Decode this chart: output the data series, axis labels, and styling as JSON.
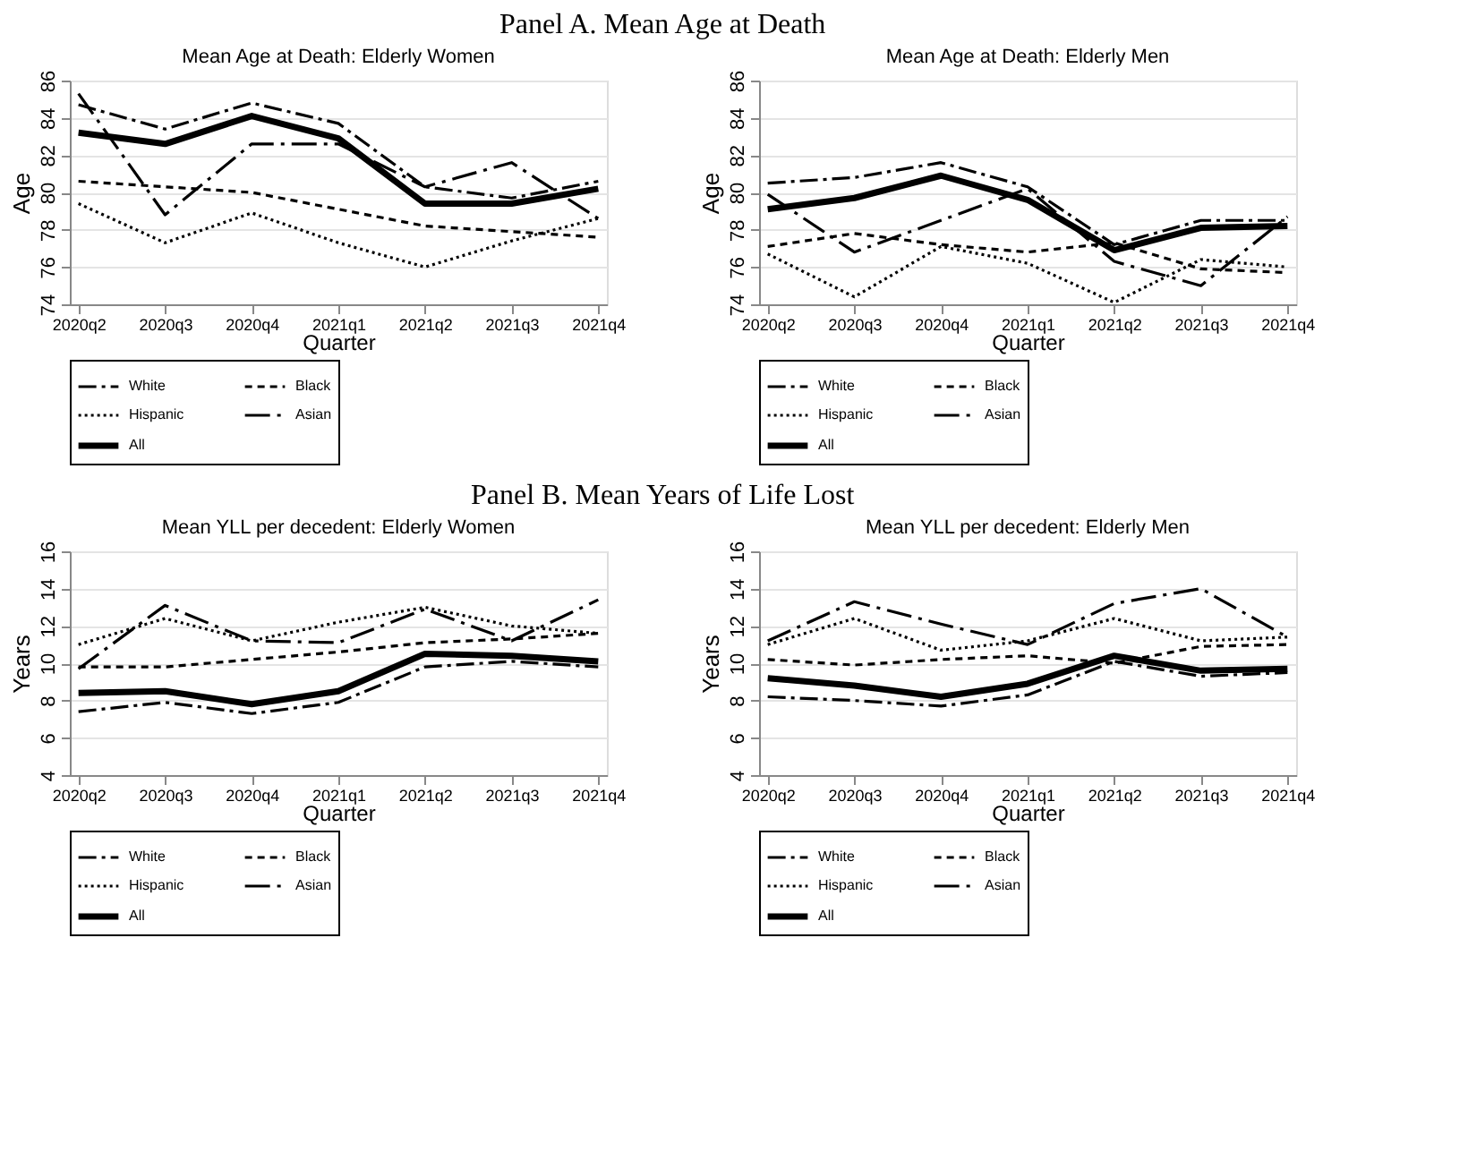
{
  "chart_data": [
    {
      "type": "line",
      "title": "Mean Age at Death: Elderly Women",
      "annotations": [
        "Panel A. Mean Age at Death"
      ],
      "xlabel": "Quarter",
      "ylabel": "Age",
      "categories": [
        "2020q2",
        "2020q3",
        "2020q4",
        "2021q1",
        "2021q2",
        "2021q3",
        "2021q4"
      ],
      "ylim": [
        74,
        86
      ],
      "yticks": [
        74,
        76,
        78,
        80,
        82,
        84,
        86
      ],
      "grid": "y",
      "legend": "bottom",
      "marker": "none",
      "series": [
        {
          "name": "White",
          "color": "#000000",
          "line_style": "dashed",
          "values": [
            84.7,
            83.4,
            84.8,
            83.7,
            80.3,
            79.7,
            80.6
          ]
        },
        {
          "name": "Black",
          "color": "#000000",
          "line_style": "dashed",
          "values": [
            80.6,
            80.3,
            80.0,
            79.1,
            78.2,
            77.9,
            77.6
          ]
        },
        {
          "name": "Hispanic",
          "color": "#000000",
          "line_style": "dotted",
          "values": [
            79.4,
            77.3,
            78.9,
            77.3,
            76.0,
            77.4,
            78.6
          ]
        },
        {
          "name": "Asian",
          "color": "#000000",
          "line_style": "dashed",
          "values": [
            85.3,
            78.8,
            82.6,
            82.6,
            80.3,
            81.6,
            78.6
          ]
        },
        {
          "name": "All",
          "color": "#000000",
          "line_style": "solid",
          "values": [
            83.2,
            82.6,
            84.1,
            82.9,
            79.4,
            79.4,
            80.2
          ]
        }
      ]
    },
    {
      "type": "line",
      "title": "Mean Age at Death: Elderly Men",
      "xlabel": "Quarter",
      "ylabel": "Age",
      "categories": [
        "2020q2",
        "2020q3",
        "2020q4",
        "2021q1",
        "2021q2",
        "2021q3",
        "2021q4"
      ],
      "ylim": [
        74,
        86
      ],
      "yticks": [
        74,
        76,
        78,
        80,
        82,
        84,
        86
      ],
      "grid": "y",
      "legend": "bottom",
      "marker": "none",
      "series": [
        {
          "name": "White",
          "color": "#000000",
          "line_style": "dashed",
          "values": [
            80.5,
            80.8,
            81.6,
            80.3,
            77.2,
            78.5,
            78.5
          ]
        },
        {
          "name": "Black",
          "color": "#000000",
          "line_style": "dashed",
          "values": [
            77.1,
            77.8,
            77.2,
            76.8,
            77.3,
            75.9,
            75.7
          ]
        },
        {
          "name": "Hispanic",
          "color": "#000000",
          "line_style": "dotted",
          "values": [
            76.7,
            74.4,
            77.1,
            76.2,
            74.1,
            76.4,
            76.0
          ]
        },
        {
          "name": "Asian",
          "color": "#000000",
          "line_style": "dashed",
          "values": [
            79.9,
            76.8,
            78.5,
            80.2,
            76.3,
            75.0,
            78.7
          ]
        },
        {
          "name": "All",
          "color": "#000000",
          "line_style": "solid",
          "values": [
            79.1,
            79.7,
            80.9,
            79.6,
            76.9,
            78.1,
            78.2
          ]
        }
      ]
    },
    {
      "type": "line",
      "title": "Mean YLL per decedent: Elderly Women",
      "annotations": [
        "Panel B. Mean Years of Life Lost"
      ],
      "xlabel": "Quarter",
      "ylabel": "Years",
      "categories": [
        "2020q2",
        "2020q3",
        "2020q4",
        "2021q1",
        "2021q2",
        "2021q3",
        "2021q4"
      ],
      "ylim": [
        4,
        16
      ],
      "yticks": [
        4,
        6,
        8,
        10,
        12,
        14,
        16
      ],
      "grid": "y",
      "legend": "bottom",
      "marker": "none",
      "series": [
        {
          "name": "White",
          "color": "#000000",
          "line_style": "dashed",
          "values": [
            7.4,
            7.9,
            7.3,
            7.9,
            9.8,
            10.1,
            9.8
          ]
        },
        {
          "name": "Black",
          "color": "#000000",
          "line_style": "dashed",
          "values": [
            9.8,
            9.8,
            10.2,
            10.6,
            11.1,
            11.3,
            11.6
          ]
        },
        {
          "name": "Hispanic",
          "color": "#000000",
          "line_style": "dotted",
          "values": [
            11.0,
            12.4,
            11.2,
            12.2,
            13.0,
            12.0,
            11.6
          ]
        },
        {
          "name": "Asian",
          "color": "#000000",
          "line_style": "dashed",
          "values": [
            9.7,
            13.1,
            11.2,
            11.1,
            12.9,
            11.2,
            13.4
          ]
        },
        {
          "name": "All",
          "color": "#000000",
          "line_style": "solid",
          "values": [
            8.4,
            8.5,
            7.8,
            8.5,
            10.5,
            10.4,
            10.1
          ]
        }
      ]
    },
    {
      "type": "line",
      "title": "Mean YLL per decedent: Elderly Men",
      "xlabel": "Quarter",
      "ylabel": "Years",
      "categories": [
        "2020q2",
        "2020q3",
        "2020q4",
        "2021q1",
        "2021q2",
        "2021q3",
        "2021q4"
      ],
      "ylim": [
        4,
        16
      ],
      "yticks": [
        4,
        6,
        8,
        10,
        12,
        14,
        16
      ],
      "grid": "y",
      "legend": "bottom",
      "marker": "none",
      "series": [
        {
          "name": "White",
          "color": "#000000",
          "line_style": "dashed",
          "values": [
            8.2,
            8.0,
            7.7,
            8.3,
            10.1,
            9.3,
            9.5
          ]
        },
        {
          "name": "Black",
          "color": "#000000",
          "line_style": "dashed",
          "values": [
            10.2,
            9.9,
            10.2,
            10.4,
            10.0,
            10.9,
            11.0
          ]
        },
        {
          "name": "Hispanic",
          "color": "#000000",
          "line_style": "dotted",
          "values": [
            11.0,
            12.4,
            10.7,
            11.2,
            12.4,
            11.2,
            11.4
          ]
        },
        {
          "name": "Asian",
          "color": "#000000",
          "line_style": "dashed",
          "values": [
            11.2,
            13.3,
            12.1,
            11.0,
            13.2,
            14.0,
            11.4
          ]
        },
        {
          "name": "All",
          "color": "#000000",
          "line_style": "solid",
          "values": [
            9.2,
            8.8,
            8.2,
            8.9,
            10.4,
            9.6,
            9.7
          ]
        }
      ]
    }
  ]
}
